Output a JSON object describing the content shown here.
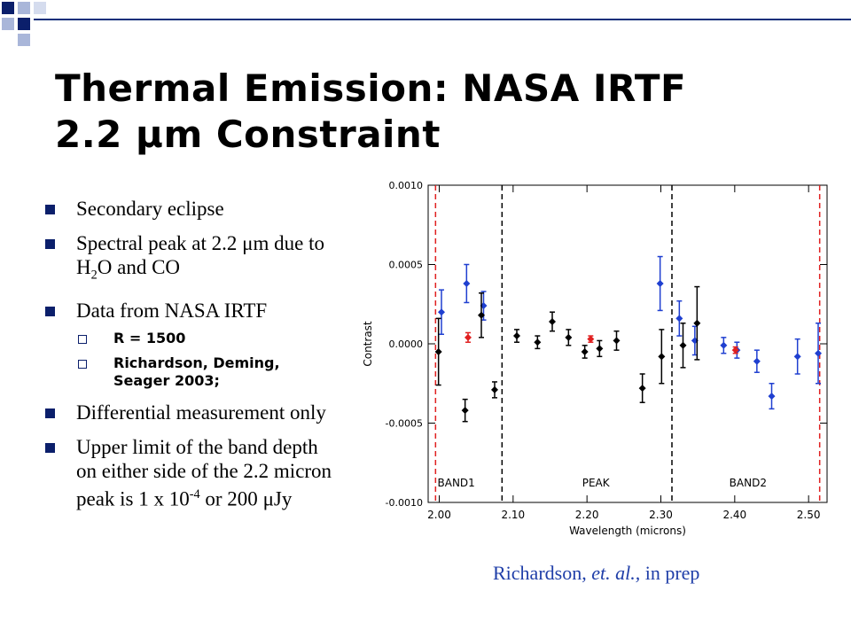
{
  "slide": {
    "title_line1": "Thermal Emission: NASA IRTF",
    "title_line2_prefix": "2.2 ",
    "title_line2_mu": "μ",
    "title_line2_suffix": "m Constraint",
    "caption_author": "Richardson, ",
    "caption_etal": "et. al.,",
    "caption_rest": " in prep",
    "bullets": {
      "b1": "Secondary eclipse",
      "b2_a": "Spectral peak at 2.2 ",
      "b2_mu": "μ",
      "b2_b": "m due to H",
      "b2_sub": "2",
      "b2_c": "O and CO",
      "b3": "Data from NASA IRTF",
      "s1": "R = 1500",
      "s2": "Richardson, Deming, Seager 2003;",
      "b4": "Differential measurement only",
      "b5_a": "Upper limit of the band depth on either side of the 2.2 micron peak is 1 x 10",
      "b5_sup": "-4",
      "b5_b": " or 200 ",
      "b5_mu": "μ",
      "b5_c": "Jy"
    }
  },
  "colors": {
    "accent": "#0b1f6b",
    "blue_points": "#1f3fd0",
    "red_points": "#e02020",
    "black_points": "#000000",
    "caption": "#1f3ea8"
  },
  "chart_data": {
    "type": "scatter",
    "xlabel": "Wavelength (microns)",
    "ylabel": "Contrast",
    "xlim": [
      1.985,
      2.525
    ],
    "ylim": [
      -0.001,
      0.001
    ],
    "xticks": [
      2.0,
      2.1,
      2.2,
      2.3,
      2.4,
      2.5
    ],
    "xtick_labels": [
      "2.00",
      "2.10",
      "2.20",
      "2.30",
      "2.40",
      "2.50"
    ],
    "yticks": [
      -0.001,
      -0.0005,
      0.0,
      0.0005,
      0.001
    ],
    "ytick_labels": [
      "-0.0010",
      "-0.0005",
      "0.0000",
      "0.0005",
      "0.0010"
    ],
    "band_dividers": [
      2.085,
      2.315
    ],
    "red_edges": [
      1.995,
      2.515
    ],
    "band_labels": [
      {
        "label": "BAND1",
        "x": 2.023
      },
      {
        "label": "PEAK",
        "x": 2.212
      },
      {
        "label": "BAND2",
        "x": 2.418
      }
    ],
    "series": [
      {
        "color": "blue",
        "points": [
          {
            "x": 2.003,
            "y": 0.0002,
            "err": 0.00014
          },
          {
            "x": 2.037,
            "y": 0.00038,
            "err": 0.00012
          },
          {
            "x": 2.06,
            "y": 0.00024,
            "err": 9e-05
          },
          {
            "x": 2.299,
            "y": 0.00038,
            "err": 0.00017
          },
          {
            "x": 2.325,
            "y": 0.00016,
            "err": 0.00011
          },
          {
            "x": 2.346,
            "y": 2e-05,
            "err": 9e-05
          },
          {
            "x": 2.385,
            "y": -1e-05,
            "err": 5e-05
          },
          {
            "x": 2.403,
            "y": -4e-05,
            "err": 5e-05
          },
          {
            "x": 2.43,
            "y": -0.00011,
            "err": 7e-05
          },
          {
            "x": 2.45,
            "y": -0.00033,
            "err": 8e-05
          },
          {
            "x": 2.485,
            "y": -8e-05,
            "err": 0.00011
          },
          {
            "x": 2.513,
            "y": -6e-05,
            "err": 0.00019
          }
        ]
      },
      {
        "color": "red",
        "points": [
          {
            "x": 2.039,
            "y": 4e-05,
            "err": 3e-05
          },
          {
            "x": 2.205,
            "y": 3e-05,
            "err": 2e-05
          },
          {
            "x": 2.401,
            "y": -4e-05,
            "err": 2e-05
          }
        ]
      },
      {
        "color": "black",
        "points": [
          {
            "x": 1.999,
            "y": -5e-05,
            "err": 0.00021
          },
          {
            "x": 2.035,
            "y": -0.00042,
            "err": 7e-05
          },
          {
            "x": 2.057,
            "y": 0.00018,
            "err": 0.00014
          },
          {
            "x": 2.075,
            "y": -0.00029,
            "err": 5e-05
          },
          {
            "x": 2.105,
            "y": 5e-05,
            "err": 4e-05
          },
          {
            "x": 2.133,
            "y": 1e-05,
            "err": 4e-05
          },
          {
            "x": 2.153,
            "y": 0.00014,
            "err": 6e-05
          },
          {
            "x": 2.175,
            "y": 4e-05,
            "err": 5e-05
          },
          {
            "x": 2.197,
            "y": -5e-05,
            "err": 4e-05
          },
          {
            "x": 2.217,
            "y": -3e-05,
            "err": 5e-05
          },
          {
            "x": 2.24,
            "y": 2e-05,
            "err": 6e-05
          },
          {
            "x": 2.275,
            "y": -0.00028,
            "err": 9e-05
          },
          {
            "x": 2.301,
            "y": -8e-05,
            "err": 0.00017
          },
          {
            "x": 2.33,
            "y": -1e-05,
            "err": 0.00014
          },
          {
            "x": 2.349,
            "y": 0.00013,
            "err": 0.00023
          }
        ]
      }
    ]
  }
}
